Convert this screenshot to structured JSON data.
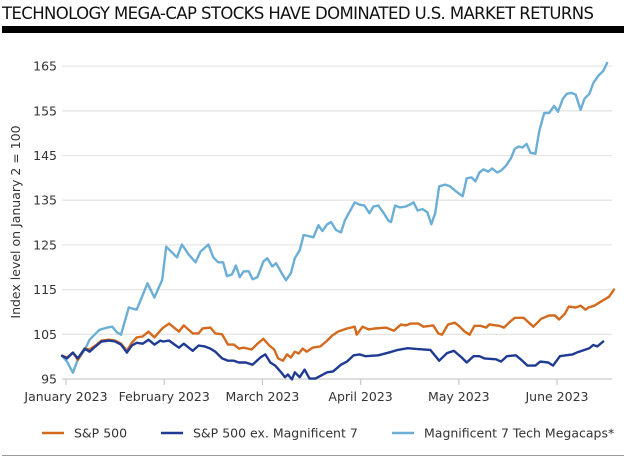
{
  "chart_data": {
    "type": "line",
    "title": "TECHNOLOGY MEGA-CAP STOCKS HAVE DOMINATED U.S. MARKET RETURNS",
    "xlabel": "",
    "ylabel": "Index level on January 2 = 100",
    "ylim": [
      95,
      168
    ],
    "yticks": [
      95,
      105,
      115,
      125,
      135,
      145,
      155,
      165
    ],
    "xlim": [
      0,
      5.55
    ],
    "xticks": [
      {
        "label": "January 2023",
        "x": 0
      },
      {
        "label": "February 2023",
        "x": 1
      },
      {
        "label": "March 2023",
        "x": 2
      },
      {
        "label": "April 2023",
        "x": 3
      },
      {
        "label": "May 2023",
        "x": 4
      },
      {
        "label": "June 2023",
        "x": 5
      }
    ],
    "grid": "horizontal",
    "legend_position": "bottom",
    "series": [
      {
        "name": "Magnificent 7 Tech Megacaps*",
        "color": "#6BAED6",
        "points": [
          [
            -0.04,
            100.2
          ],
          [
            0.01,
            98.9
          ],
          [
            0.07,
            96.4
          ],
          [
            0.12,
            99.3
          ],
          [
            0.19,
            101.5
          ],
          [
            0.24,
            103.8
          ],
          [
            0.34,
            106.0
          ],
          [
            0.42,
            106.5
          ],
          [
            0.47,
            106.7
          ],
          [
            0.52,
            105.4
          ],
          [
            0.56,
            104.9
          ],
          [
            0.64,
            111.0
          ],
          [
            0.72,
            110.5
          ],
          [
            0.83,
            116.4
          ],
          [
            0.9,
            113.2
          ],
          [
            0.98,
            117.2
          ],
          [
            1.02,
            124.6
          ],
          [
            1.13,
            122.2
          ],
          [
            1.18,
            125.1
          ],
          [
            1.25,
            122.8
          ],
          [
            1.32,
            121.1
          ],
          [
            1.37,
            123.5
          ],
          [
            1.45,
            125.1
          ],
          [
            1.5,
            122.2
          ],
          [
            1.55,
            121.1
          ],
          [
            1.6,
            121.1
          ],
          [
            1.64,
            118.0
          ],
          [
            1.69,
            118.4
          ],
          [
            1.73,
            120.4
          ],
          [
            1.77,
            117.8
          ],
          [
            1.81,
            119.1
          ],
          [
            1.86,
            119.1
          ],
          [
            1.9,
            117.3
          ],
          [
            1.95,
            117.8
          ],
          [
            2.01,
            121.3
          ],
          [
            2.05,
            122.0
          ],
          [
            2.1,
            120.2
          ],
          [
            2.14,
            120.9
          ],
          [
            2.19,
            118.9
          ],
          [
            2.24,
            117.1
          ],
          [
            2.29,
            118.7
          ],
          [
            2.33,
            122.0
          ],
          [
            2.38,
            123.8
          ],
          [
            2.42,
            127.2
          ],
          [
            2.47,
            127.0
          ],
          [
            2.52,
            126.7
          ],
          [
            2.57,
            129.4
          ],
          [
            2.61,
            128.1
          ],
          [
            2.66,
            129.6
          ],
          [
            2.7,
            130.1
          ],
          [
            2.75,
            128.3
          ],
          [
            2.8,
            127.8
          ],
          [
            2.84,
            130.5
          ],
          [
            2.88,
            132.1
          ],
          [
            2.94,
            134.5
          ],
          [
            2.99,
            134.0
          ],
          [
            3.04,
            133.8
          ],
          [
            3.09,
            132.1
          ],
          [
            3.13,
            133.6
          ],
          [
            3.18,
            133.8
          ],
          [
            3.23,
            132.3
          ],
          [
            3.28,
            130.5
          ],
          [
            3.31,
            130.1
          ],
          [
            3.35,
            133.8
          ],
          [
            3.4,
            133.4
          ],
          [
            3.46,
            133.6
          ],
          [
            3.51,
            134.1
          ],
          [
            3.54,
            134.5
          ],
          [
            3.58,
            132.7
          ],
          [
            3.63,
            133.0
          ],
          [
            3.68,
            132.3
          ],
          [
            3.72,
            129.6
          ],
          [
            3.76,
            132.1
          ],
          [
            3.8,
            138.1
          ],
          [
            3.86,
            138.5
          ],
          [
            3.91,
            138.1
          ],
          [
            3.96,
            137.2
          ],
          [
            4.0,
            136.5
          ],
          [
            4.04,
            135.9
          ],
          [
            4.08,
            139.9
          ],
          [
            4.13,
            140.1
          ],
          [
            4.17,
            139.2
          ],
          [
            4.21,
            141.2
          ],
          [
            4.25,
            141.9
          ],
          [
            4.3,
            141.4
          ],
          [
            4.34,
            142.1
          ],
          [
            4.39,
            141.2
          ],
          [
            4.43,
            141.6
          ],
          [
            4.48,
            142.7
          ],
          [
            4.53,
            144.3
          ],
          [
            4.57,
            146.5
          ],
          [
            4.61,
            147.0
          ],
          [
            4.65,
            146.8
          ],
          [
            4.69,
            147.6
          ],
          [
            4.73,
            145.6
          ],
          [
            4.78,
            145.4
          ],
          [
            4.82,
            150.5
          ],
          [
            4.87,
            154.5
          ],
          [
            4.92,
            154.5
          ],
          [
            4.97,
            156.1
          ],
          [
            5.01,
            154.8
          ],
          [
            5.06,
            157.7
          ],
          [
            5.1,
            158.8
          ],
          [
            5.15,
            159.0
          ],
          [
            5.19,
            158.6
          ],
          [
            5.24,
            155.2
          ],
          [
            5.28,
            157.7
          ],
          [
            5.33,
            158.8
          ],
          [
            5.37,
            161.2
          ],
          [
            5.42,
            162.8
          ],
          [
            5.47,
            163.9
          ],
          [
            5.51,
            165.7
          ]
        ]
      },
      {
        "name": "S&P 500",
        "color": "#D46A1E",
        "points": [
          [
            -0.04,
            100.2
          ],
          [
            0.01,
            99.8
          ],
          [
            0.07,
            100.9
          ],
          [
            0.12,
            99.3
          ],
          [
            0.19,
            101.8
          ],
          [
            0.24,
            101.6
          ],
          [
            0.3,
            102.5
          ],
          [
            0.36,
            103.6
          ],
          [
            0.44,
            103.8
          ],
          [
            0.5,
            103.6
          ],
          [
            0.56,
            102.9
          ],
          [
            0.62,
            101.3
          ],
          [
            0.67,
            103.1
          ],
          [
            0.72,
            104.3
          ],
          [
            0.78,
            104.5
          ],
          [
            0.84,
            105.6
          ],
          [
            0.9,
            104.3
          ],
          [
            0.96,
            105.8
          ],
          [
            0.99,
            106.5
          ],
          [
            1.05,
            107.4
          ],
          [
            1.15,
            105.6
          ],
          [
            1.2,
            107.0
          ],
          [
            1.29,
            105.2
          ],
          [
            1.35,
            105.2
          ],
          [
            1.39,
            106.3
          ],
          [
            1.47,
            106.5
          ],
          [
            1.52,
            105.2
          ],
          [
            1.59,
            105.0
          ],
          [
            1.65,
            102.7
          ],
          [
            1.71,
            102.7
          ],
          [
            1.76,
            101.8
          ],
          [
            1.81,
            102.0
          ],
          [
            1.89,
            101.6
          ],
          [
            1.95,
            102.9
          ],
          [
            2.01,
            104.0
          ],
          [
            2.07,
            102.5
          ],
          [
            2.12,
            101.6
          ],
          [
            2.16,
            99.6
          ],
          [
            2.21,
            99.1
          ],
          [
            2.25,
            100.5
          ],
          [
            2.29,
            99.8
          ],
          [
            2.33,
            101.1
          ],
          [
            2.37,
            100.7
          ],
          [
            2.41,
            101.8
          ],
          [
            2.45,
            101.1
          ],
          [
            2.51,
            102.0
          ],
          [
            2.59,
            102.3
          ],
          [
            2.65,
            103.4
          ],
          [
            2.71,
            104.7
          ],
          [
            2.77,
            105.6
          ],
          [
            2.86,
            106.3
          ],
          [
            2.94,
            106.7
          ],
          [
            2.96,
            104.9
          ],
          [
            3.02,
            106.7
          ],
          [
            3.08,
            106.1
          ],
          [
            3.14,
            106.3
          ],
          [
            3.26,
            106.5
          ],
          [
            3.34,
            105.8
          ],
          [
            3.41,
            107.2
          ],
          [
            3.46,
            107.0
          ],
          [
            3.51,
            107.4
          ],
          [
            3.59,
            107.4
          ],
          [
            3.64,
            106.7
          ],
          [
            3.74,
            107.0
          ],
          [
            3.79,
            105.2
          ],
          [
            3.83,
            104.9
          ],
          [
            3.89,
            107.2
          ],
          [
            3.96,
            107.6
          ],
          [
            4.01,
            106.7
          ],
          [
            4.06,
            105.6
          ],
          [
            4.11,
            104.9
          ],
          [
            4.16,
            106.9
          ],
          [
            4.22,
            106.9
          ],
          [
            4.28,
            106.5
          ],
          [
            4.31,
            107.2
          ],
          [
            4.41,
            106.9
          ],
          [
            4.46,
            106.5
          ],
          [
            4.52,
            107.8
          ],
          [
            4.57,
            108.7
          ],
          [
            4.66,
            108.7
          ],
          [
            4.76,
            106.7
          ],
          [
            4.84,
            108.5
          ],
          [
            4.92,
            109.2
          ],
          [
            4.98,
            109.2
          ],
          [
            5.02,
            108.3
          ],
          [
            5.08,
            109.6
          ],
          [
            5.12,
            111.2
          ],
          [
            5.19,
            111.0
          ],
          [
            5.24,
            111.4
          ],
          [
            5.29,
            110.5
          ],
          [
            5.32,
            111.0
          ],
          [
            5.38,
            111.4
          ],
          [
            5.46,
            112.5
          ],
          [
            5.53,
            113.4
          ],
          [
            5.58,
            115.0
          ]
        ]
      },
      {
        "name": "S&P 500 ex. Magnificent 7",
        "color": "#1F3A93",
        "points": [
          [
            -0.04,
            100.2
          ],
          [
            0.01,
            99.6
          ],
          [
            0.07,
            100.9
          ],
          [
            0.12,
            99.6
          ],
          [
            0.19,
            101.8
          ],
          [
            0.24,
            101.1
          ],
          [
            0.3,
            102.3
          ],
          [
            0.36,
            103.4
          ],
          [
            0.44,
            103.6
          ],
          [
            0.5,
            103.4
          ],
          [
            0.56,
            102.7
          ],
          [
            0.62,
            100.9
          ],
          [
            0.67,
            102.5
          ],
          [
            0.72,
            103.1
          ],
          [
            0.78,
            102.9
          ],
          [
            0.84,
            103.8
          ],
          [
            0.9,
            102.7
          ],
          [
            0.96,
            103.6
          ],
          [
            0.99,
            103.4
          ],
          [
            1.05,
            103.6
          ],
          [
            1.15,
            102.0
          ],
          [
            1.2,
            102.9
          ],
          [
            1.29,
            101.3
          ],
          [
            1.35,
            102.5
          ],
          [
            1.41,
            102.3
          ],
          [
            1.47,
            101.8
          ],
          [
            1.52,
            101.1
          ],
          [
            1.59,
            99.6
          ],
          [
            1.65,
            99.1
          ],
          [
            1.71,
            99.1
          ],
          [
            1.76,
            98.7
          ],
          [
            1.83,
            98.7
          ],
          [
            1.9,
            98.2
          ],
          [
            1.98,
            99.8
          ],
          [
            2.03,
            100.5
          ],
          [
            2.08,
            98.7
          ],
          [
            2.13,
            98.0
          ],
          [
            2.19,
            96.5
          ],
          [
            2.23,
            95.4
          ],
          [
            2.26,
            96.0
          ],
          [
            2.3,
            94.9
          ],
          [
            2.33,
            96.5
          ],
          [
            2.38,
            95.4
          ],
          [
            2.43,
            97.1
          ],
          [
            2.48,
            95.1
          ],
          [
            2.54,
            95.1
          ],
          [
            2.6,
            95.8
          ],
          [
            2.66,
            96.5
          ],
          [
            2.72,
            96.7
          ],
          [
            2.8,
            98.2
          ],
          [
            2.86,
            98.9
          ],
          [
            2.93,
            100.3
          ],
          [
            2.99,
            100.5
          ],
          [
            3.05,
            100.1
          ],
          [
            3.18,
            100.3
          ],
          [
            3.3,
            101.0
          ],
          [
            3.38,
            101.5
          ],
          [
            3.48,
            101.9
          ],
          [
            3.58,
            101.7
          ],
          [
            3.71,
            101.5
          ],
          [
            3.8,
            99.1
          ],
          [
            3.88,
            100.8
          ],
          [
            3.95,
            101.3
          ],
          [
            4.03,
            99.8
          ],
          [
            4.08,
            98.7
          ],
          [
            4.15,
            100.1
          ],
          [
            4.21,
            100.1
          ],
          [
            4.26,
            99.6
          ],
          [
            4.38,
            99.4
          ],
          [
            4.43,
            98.9
          ],
          [
            4.49,
            100.1
          ],
          [
            4.58,
            100.3
          ],
          [
            4.63,
            99.4
          ],
          [
            4.7,
            98.0
          ],
          [
            4.78,
            98.0
          ],
          [
            4.83,
            98.9
          ],
          [
            4.91,
            98.7
          ],
          [
            4.96,
            98.0
          ],
          [
            5.03,
            100.1
          ],
          [
            5.09,
            100.3
          ],
          [
            5.16,
            100.5
          ],
          [
            5.21,
            101.0
          ],
          [
            5.33,
            101.9
          ],
          [
            5.37,
            102.6
          ],
          [
            5.41,
            102.3
          ],
          [
            5.47,
            103.4
          ]
        ]
      }
    ]
  }
}
